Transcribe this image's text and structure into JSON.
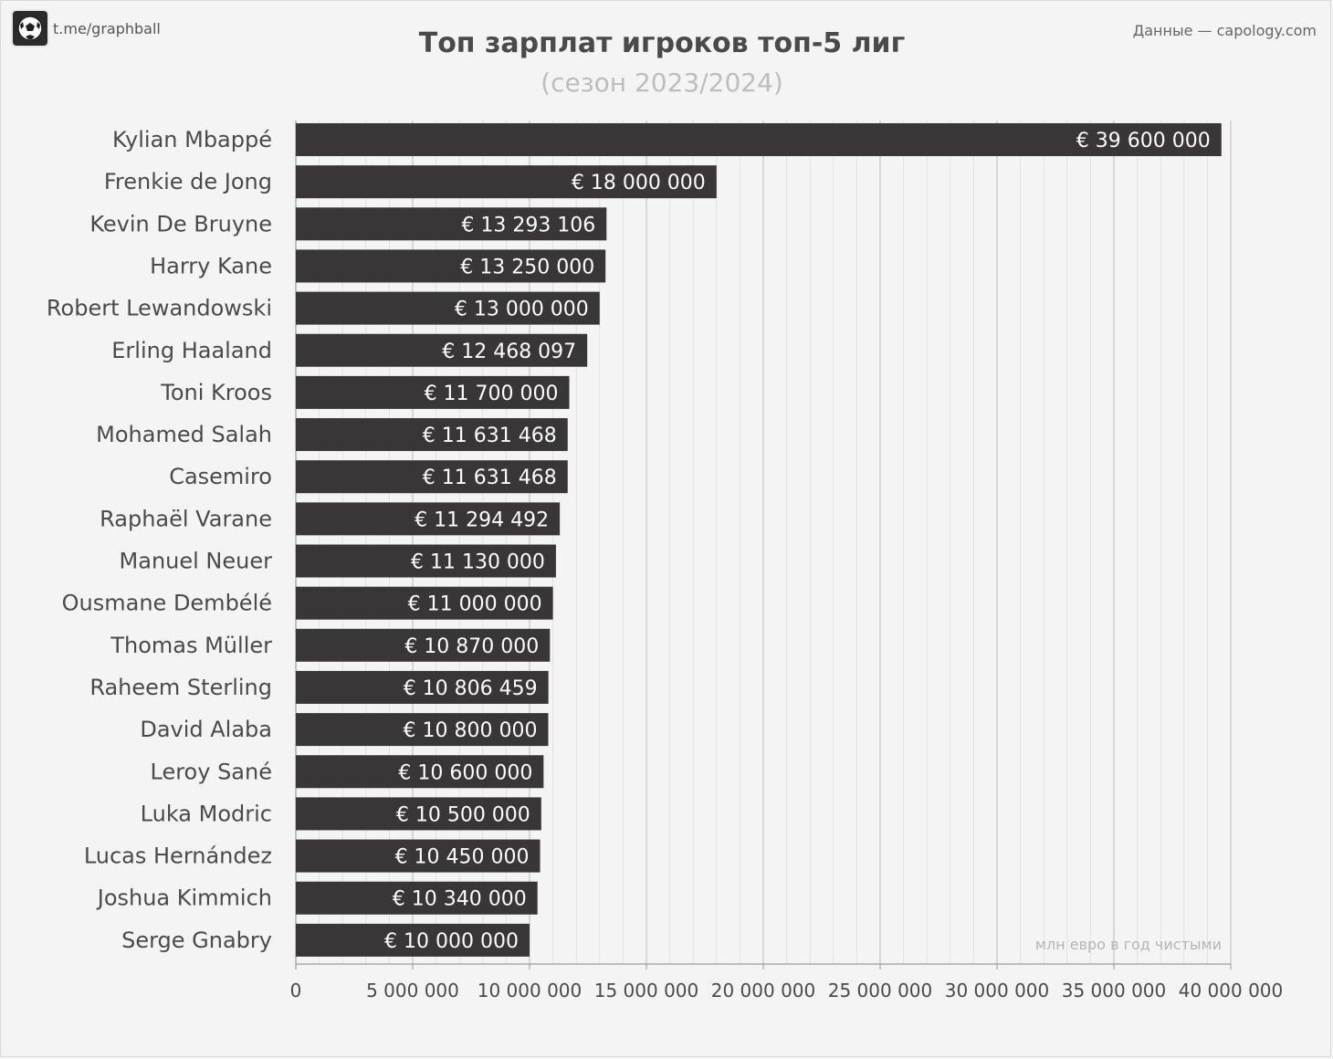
{
  "header": {
    "brand_text": "t.me/graphball",
    "source_text": "Данные — capology.com",
    "title": "Топ зарплат игроков топ-5 лиг",
    "subtitle": "(сезон 2023/2024)"
  },
  "icons": {
    "logo": "football-icon"
  },
  "colors": {
    "bar": "#383636",
    "bar_text": "#ffffff",
    "grid": "#cfcfcf",
    "background": "#f4f4f4"
  },
  "chart_data": {
    "type": "bar",
    "orientation": "horizontal",
    "title": "Топ зарплат игроков топ-5 лиг",
    "subtitle": "(сезон 2023/2024)",
    "unit_note": "млн евро в год чистыми",
    "categories": [
      "Kylian Mbappé",
      "Frenkie de Jong",
      "Kevin De Bruyne",
      "Harry Kane",
      "Robert Lewandowski",
      "Erling Haaland",
      "Toni Kroos",
      "Mohamed Salah",
      "Casemiro",
      "Raphaël Varane",
      "Manuel Neuer",
      "Ousmane Dembélé",
      "Thomas Müller",
      "Raheem Sterling",
      "David Alaba",
      "Leroy Sané",
      "Luka Modric",
      "Lucas Hernández",
      "Joshua Kimmich",
      "Serge Gnabry"
    ],
    "values": [
      39600000,
      18000000,
      13293106,
      13250000,
      13000000,
      12468097,
      11700000,
      11631468,
      11631468,
      11294492,
      11130000,
      11000000,
      10870000,
      10806459,
      10800000,
      10600000,
      10500000,
      10450000,
      10340000,
      10000000
    ],
    "value_labels": [
      "€ 39 600 000",
      "€ 18 000 000",
      "€ 13 293 106",
      "€ 13 250 000",
      "€ 13 000 000",
      "€ 12 468 097",
      "€ 11 700 000",
      "€ 11 631 468",
      "€ 11 631 468",
      "€ 11 294 492",
      "€ 11 130 000",
      "€ 11 000 000",
      "€ 10 870 000",
      "€ 10 806 459",
      "€ 10 800 000",
      "€ 10 600 000",
      "€ 10 500 000",
      "€ 10 450 000",
      "€ 10 340 000",
      "€ 10 000 000"
    ],
    "x_ticks": [
      0,
      5000000,
      10000000,
      15000000,
      20000000,
      25000000,
      30000000,
      35000000,
      40000000
    ],
    "x_tick_labels": [
      "0",
      "5 000 000",
      "10 000 000",
      "15 000 000",
      "20 000 000",
      "25 000 000",
      "30 000 000",
      "35 000 000",
      "40 000 000"
    ],
    "xlim": [
      0,
      40000000
    ],
    "minor_grid_step": 1000000,
    "grid": true,
    "legend": "none"
  }
}
